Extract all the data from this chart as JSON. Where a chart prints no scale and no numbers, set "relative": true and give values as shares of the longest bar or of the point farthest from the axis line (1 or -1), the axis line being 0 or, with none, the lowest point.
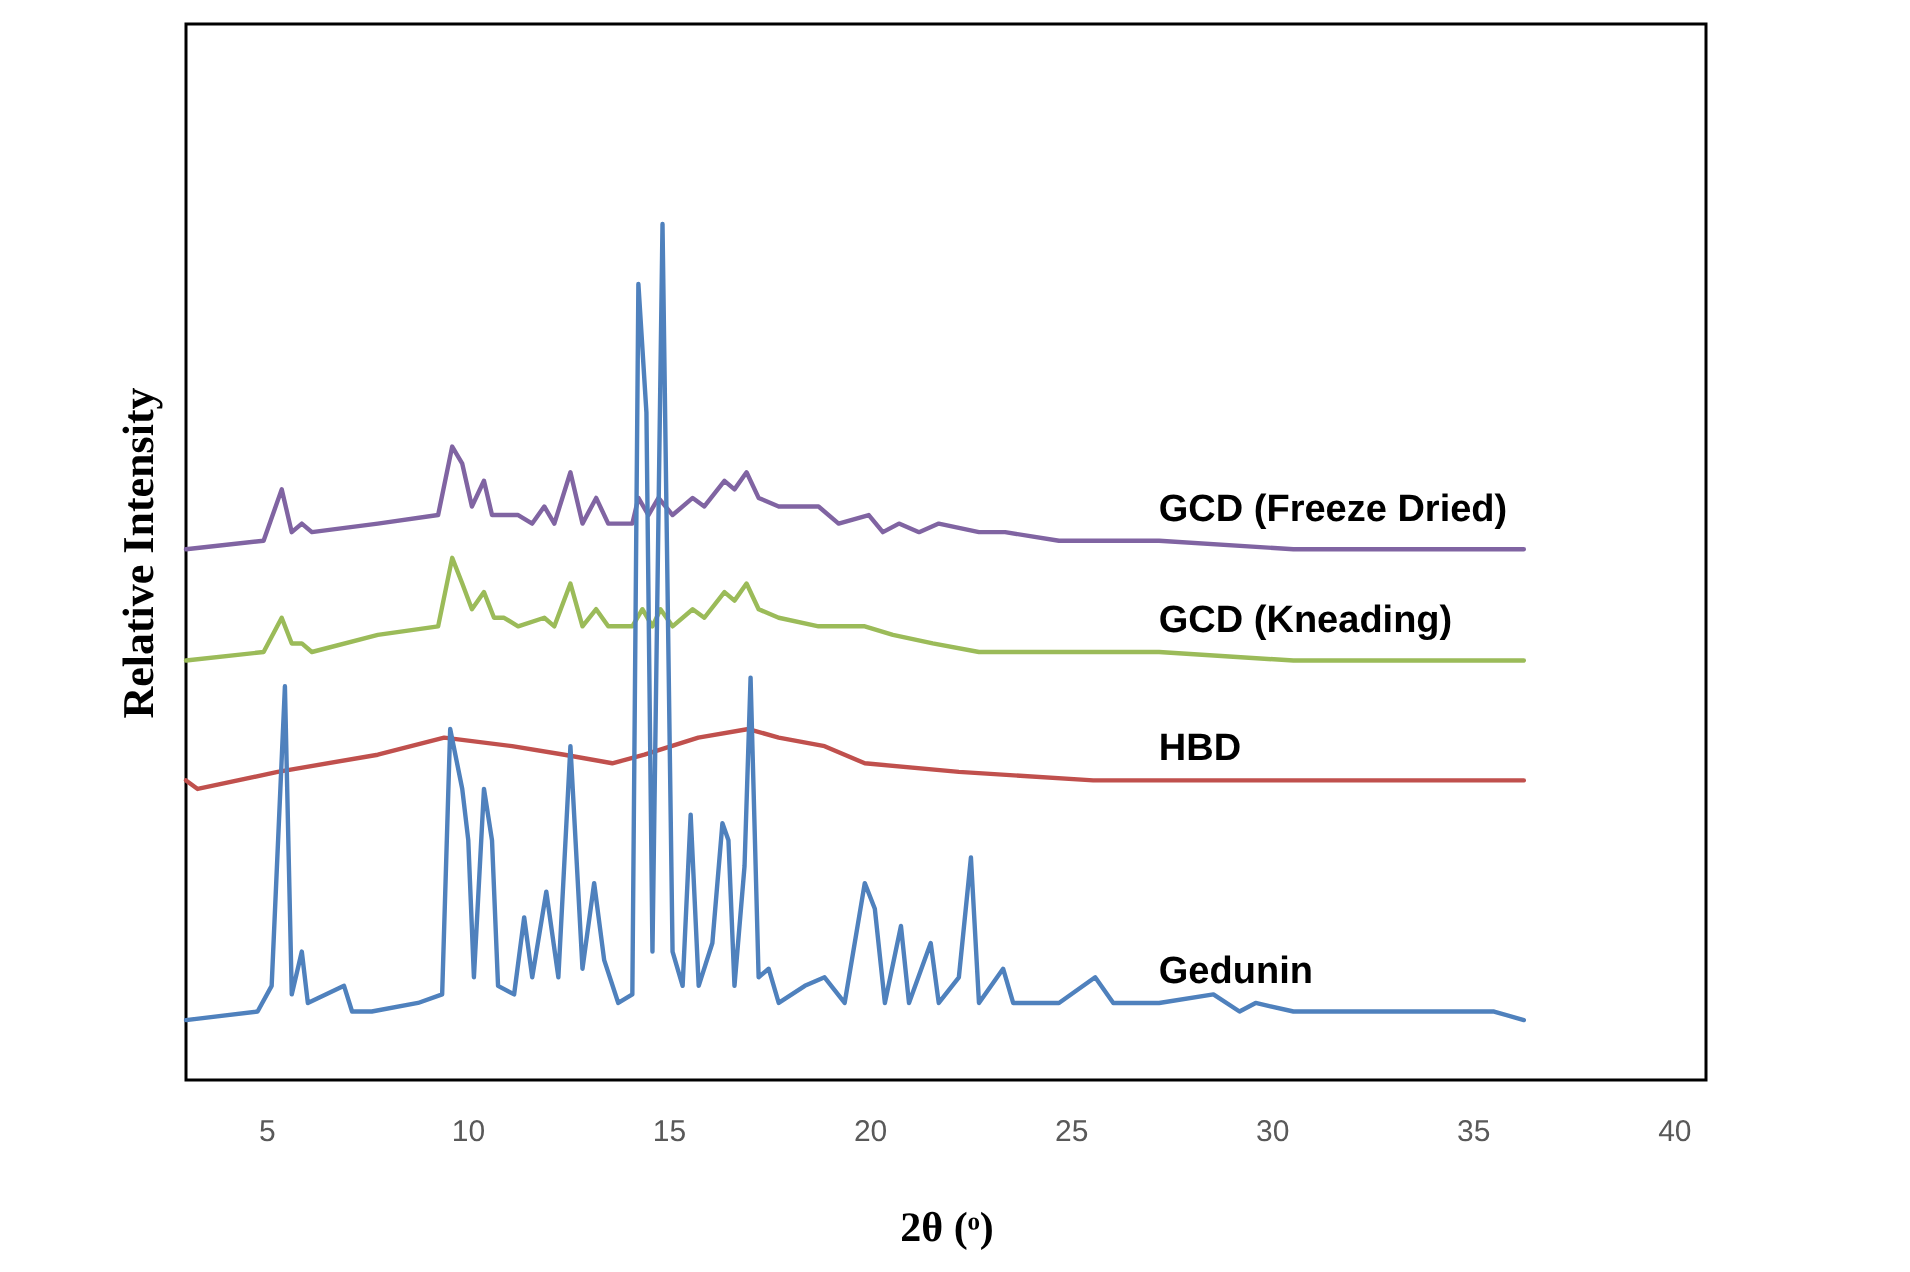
{
  "chart_data": {
    "type": "line",
    "xlabel": "2θ (ᵒ)",
    "ylabel": "Relative Intensity",
    "relative": true,
    "grid": false,
    "tick_labels": "x",
    "xlim": [
      3,
      40.8
    ],
    "xticks": [
      5,
      10,
      15,
      20,
      25,
      30,
      35,
      40
    ],
    "series": [
      {
        "name": "GCD (Freeze Dried)",
        "color": "#8064a2",
        "x": [
          3.0,
          4.93,
          5.38,
          5.63,
          5.88,
          6.13,
          7.77,
          9.27,
          9.62,
          9.87,
          10.11,
          10.41,
          10.61,
          11.26,
          11.61,
          11.91,
          12.16,
          12.56,
          12.86,
          13.2,
          13.5,
          14.1,
          14.25,
          14.5,
          14.75,
          15.1,
          15.6,
          15.89,
          16.39,
          16.64,
          16.94,
          17.24,
          17.74,
          18.73,
          19.23,
          19.98,
          20.33,
          20.73,
          21.23,
          21.72,
          22.72,
          23.37,
          24.71,
          27.2,
          30.54,
          33.83,
          36.27
        ],
        "values": [
          0.62,
          0.63,
          0.69,
          0.64,
          0.65,
          0.64,
          0.65,
          0.66,
          0.74,
          0.72,
          0.67,
          0.7,
          0.66,
          0.66,
          0.65,
          0.67,
          0.65,
          0.71,
          0.65,
          0.68,
          0.65,
          0.65,
          0.68,
          0.66,
          0.68,
          0.66,
          0.68,
          0.67,
          0.7,
          0.69,
          0.71,
          0.68,
          0.67,
          0.67,
          0.65,
          0.66,
          0.64,
          0.65,
          0.64,
          0.65,
          0.64,
          0.64,
          0.63,
          0.63,
          0.62,
          0.62,
          0.62
        ]
      },
      {
        "name": "GCD (Kneading)",
        "color": "#9bbb59",
        "x": [
          3.0,
          4.93,
          5.38,
          5.63,
          5.88,
          6.13,
          7.77,
          9.27,
          9.62,
          9.87,
          10.11,
          10.41,
          10.66,
          10.91,
          11.26,
          11.91,
          12.16,
          12.56,
          12.86,
          13.2,
          13.5,
          14.1,
          14.35,
          14.6,
          14.8,
          15.1,
          15.6,
          15.89,
          16.39,
          16.64,
          16.94,
          17.24,
          17.74,
          18.73,
          19.88,
          20.58,
          21.57,
          22.72,
          24.71,
          27.2,
          30.54,
          36.27
        ],
        "values": [
          0.49,
          0.5,
          0.54,
          0.51,
          0.51,
          0.5,
          0.52,
          0.53,
          0.61,
          0.58,
          0.55,
          0.57,
          0.54,
          0.54,
          0.53,
          0.54,
          0.53,
          0.58,
          0.53,
          0.55,
          0.53,
          0.53,
          0.55,
          0.53,
          0.55,
          0.53,
          0.55,
          0.54,
          0.57,
          0.56,
          0.58,
          0.55,
          0.54,
          0.53,
          0.53,
          0.52,
          0.51,
          0.5,
          0.5,
          0.5,
          0.49,
          0.49
        ]
      },
      {
        "name": "HBD",
        "color": "#c0504d",
        "x": [
          3.0,
          3.29,
          5.28,
          7.77,
          9.42,
          11.11,
          12.41,
          13.6,
          14.4,
          15.74,
          16.99,
          17.74,
          18.88,
          19.88,
          22.22,
          25.56,
          30.54,
          36.27
        ],
        "values": [
          0.35,
          0.34,
          0.36,
          0.38,
          0.4,
          0.39,
          0.38,
          0.37,
          0.38,
          0.4,
          0.41,
          0.4,
          0.39,
          0.37,
          0.36,
          0.35,
          0.35,
          0.35
        ]
      },
      {
        "name": "Gedunin",
        "color": "#4f81bd",
        "x": [
          3.0,
          4.78,
          5.13,
          5.46,
          5.63,
          5.88,
          6.03,
          6.93,
          7.13,
          7.62,
          8.77,
          9.37,
          9.57,
          9.87,
          10.02,
          10.16,
          10.41,
          10.61,
          10.76,
          11.16,
          11.41,
          11.61,
          11.96,
          12.26,
          12.56,
          12.86,
          13.15,
          13.4,
          13.75,
          14.1,
          14.25,
          14.45,
          14.6,
          14.85,
          15.1,
          15.35,
          15.55,
          15.75,
          16.09,
          16.34,
          16.49,
          16.64,
          16.89,
          17.04,
          17.24,
          17.49,
          17.74,
          18.39,
          18.88,
          19.38,
          19.88,
          20.13,
          20.38,
          20.78,
          20.98,
          21.52,
          21.72,
          22.22,
          22.52,
          22.72,
          23.32,
          23.57,
          24.71,
          25.61,
          26.06,
          27.2,
          28.55,
          29.2,
          29.6,
          30.54,
          32.19,
          33.83,
          35.53,
          36.27
        ],
        "values": [
          0.07,
          0.08,
          0.11,
          0.46,
          0.1,
          0.15,
          0.09,
          0.11,
          0.08,
          0.08,
          0.09,
          0.1,
          0.41,
          0.34,
          0.28,
          0.12,
          0.34,
          0.28,
          0.11,
          0.1,
          0.19,
          0.12,
          0.22,
          0.12,
          0.39,
          0.13,
          0.23,
          0.14,
          0.09,
          0.1,
          0.93,
          0.78,
          0.15,
          1.0,
          0.15,
          0.11,
          0.31,
          0.11,
          0.16,
          0.3,
          0.28,
          0.11,
          0.25,
          0.47,
          0.12,
          0.13,
          0.09,
          0.11,
          0.12,
          0.09,
          0.23,
          0.2,
          0.09,
          0.18,
          0.09,
          0.16,
          0.09,
          0.12,
          0.26,
          0.09,
          0.13,
          0.09,
          0.09,
          0.12,
          0.09,
          0.09,
          0.1,
          0.08,
          0.09,
          0.08,
          0.08,
          0.08,
          0.08,
          0.07
        ]
      }
    ]
  }
}
